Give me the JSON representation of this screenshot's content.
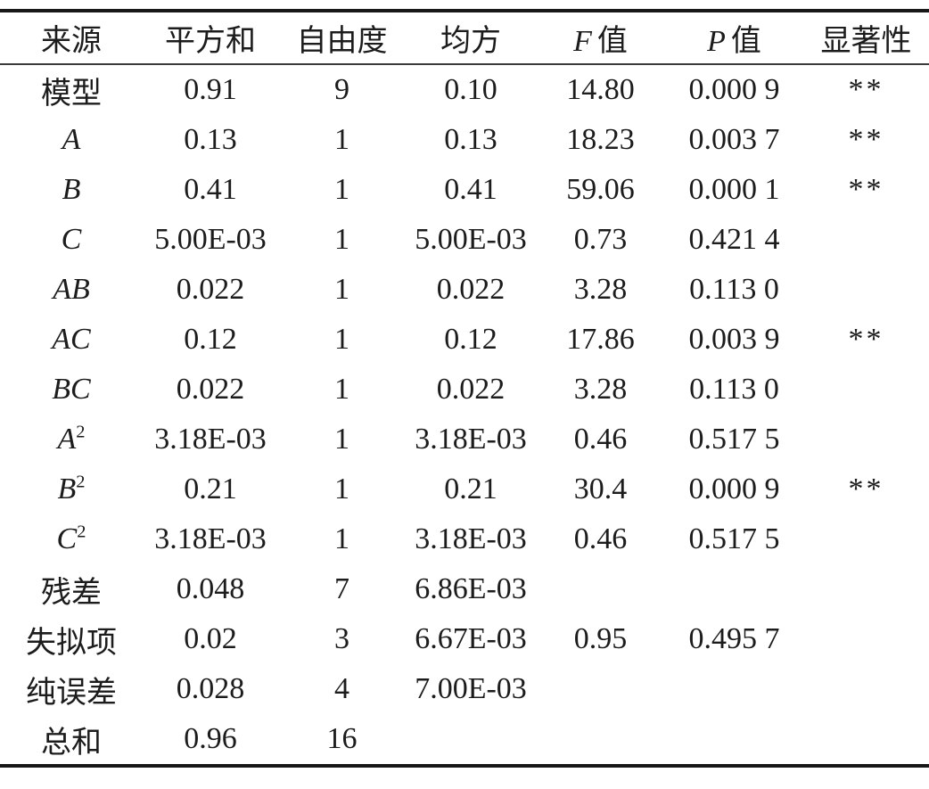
{
  "table": {
    "columns": [
      {
        "key": "source",
        "italic_prefix": "",
        "label": "来源"
      },
      {
        "key": "sum-of-squares",
        "italic_prefix": "",
        "label": "平方和"
      },
      {
        "key": "df",
        "italic_prefix": "",
        "label": "自由度"
      },
      {
        "key": "mean-square",
        "italic_prefix": "",
        "label": "均方"
      },
      {
        "key": "f-value",
        "italic_prefix": "F",
        "label": "值"
      },
      {
        "key": "p-value",
        "italic_prefix": "P",
        "label": "值"
      },
      {
        "key": "significance",
        "italic_prefix": "",
        "label": "显著性"
      }
    ],
    "rows": [
      {
        "source": "模型",
        "sup": "",
        "italic": false,
        "ss": "0.91",
        "df": "9",
        "ms": "0.10",
        "f": "14.80",
        "p": "0.000 9",
        "sig": "**"
      },
      {
        "source": "A",
        "sup": "",
        "italic": true,
        "ss": "0.13",
        "df": "1",
        "ms": "0.13",
        "f": "18.23",
        "p": "0.003 7",
        "sig": "**"
      },
      {
        "source": "B",
        "sup": "",
        "italic": true,
        "ss": "0.41",
        "df": "1",
        "ms": "0.41",
        "f": "59.06",
        "p": "0.000 1",
        "sig": "**"
      },
      {
        "source": "C",
        "sup": "",
        "italic": true,
        "ss": "5.00E-03",
        "df": "1",
        "ms": "5.00E-03",
        "f": "0.73",
        "p": "0.421 4",
        "sig": ""
      },
      {
        "source": "AB",
        "sup": "",
        "italic": true,
        "ss": "0.022",
        "df": "1",
        "ms": "0.022",
        "f": "3.28",
        "p": "0.113 0",
        "sig": ""
      },
      {
        "source": "AC",
        "sup": "",
        "italic": true,
        "ss": "0.12",
        "df": "1",
        "ms": "0.12",
        "f": "17.86",
        "p": "0.003 9",
        "sig": "**"
      },
      {
        "source": "BC",
        "sup": "",
        "italic": true,
        "ss": "0.022",
        "df": "1",
        "ms": "0.022",
        "f": "3.28",
        "p": "0.113 0",
        "sig": ""
      },
      {
        "source": "A",
        "sup": "2",
        "italic": true,
        "ss": "3.18E-03",
        "df": "1",
        "ms": "3.18E-03",
        "f": "0.46",
        "p": "0.517 5",
        "sig": ""
      },
      {
        "source": "B",
        "sup": "2",
        "italic": true,
        "ss": "0.21",
        "df": "1",
        "ms": "0.21",
        "f": "30.4",
        "p": "0.000 9",
        "sig": "**"
      },
      {
        "source": "C",
        "sup": "2",
        "italic": true,
        "ss": "3.18E-03",
        "df": "1",
        "ms": "3.18E-03",
        "f": "0.46",
        "p": "0.517 5",
        "sig": ""
      },
      {
        "source": "残差",
        "sup": "",
        "italic": false,
        "ss": "0.048",
        "df": "7",
        "ms": "6.86E-03",
        "f": "",
        "p": "",
        "sig": ""
      },
      {
        "source": "失拟项",
        "sup": "",
        "italic": false,
        "ss": "0.02",
        "df": "3",
        "ms": "6.67E-03",
        "f": "0.95",
        "p": "0.495 7",
        "sig": ""
      },
      {
        "source": "纯误差",
        "sup": "",
        "italic": false,
        "ss": "0.028",
        "df": "4",
        "ms": "7.00E-03",
        "f": "",
        "p": "",
        "sig": ""
      },
      {
        "source": "总和",
        "sup": "",
        "italic": false,
        "ss": "0.96",
        "df": "16",
        "ms": "",
        "f": "",
        "p": "",
        "sig": ""
      }
    ],
    "colors": {
      "rule_heavy": "#181818",
      "rule_light": "#3a3a3a",
      "text": "#1c1c1c",
      "background": "#ffffff"
    }
  }
}
